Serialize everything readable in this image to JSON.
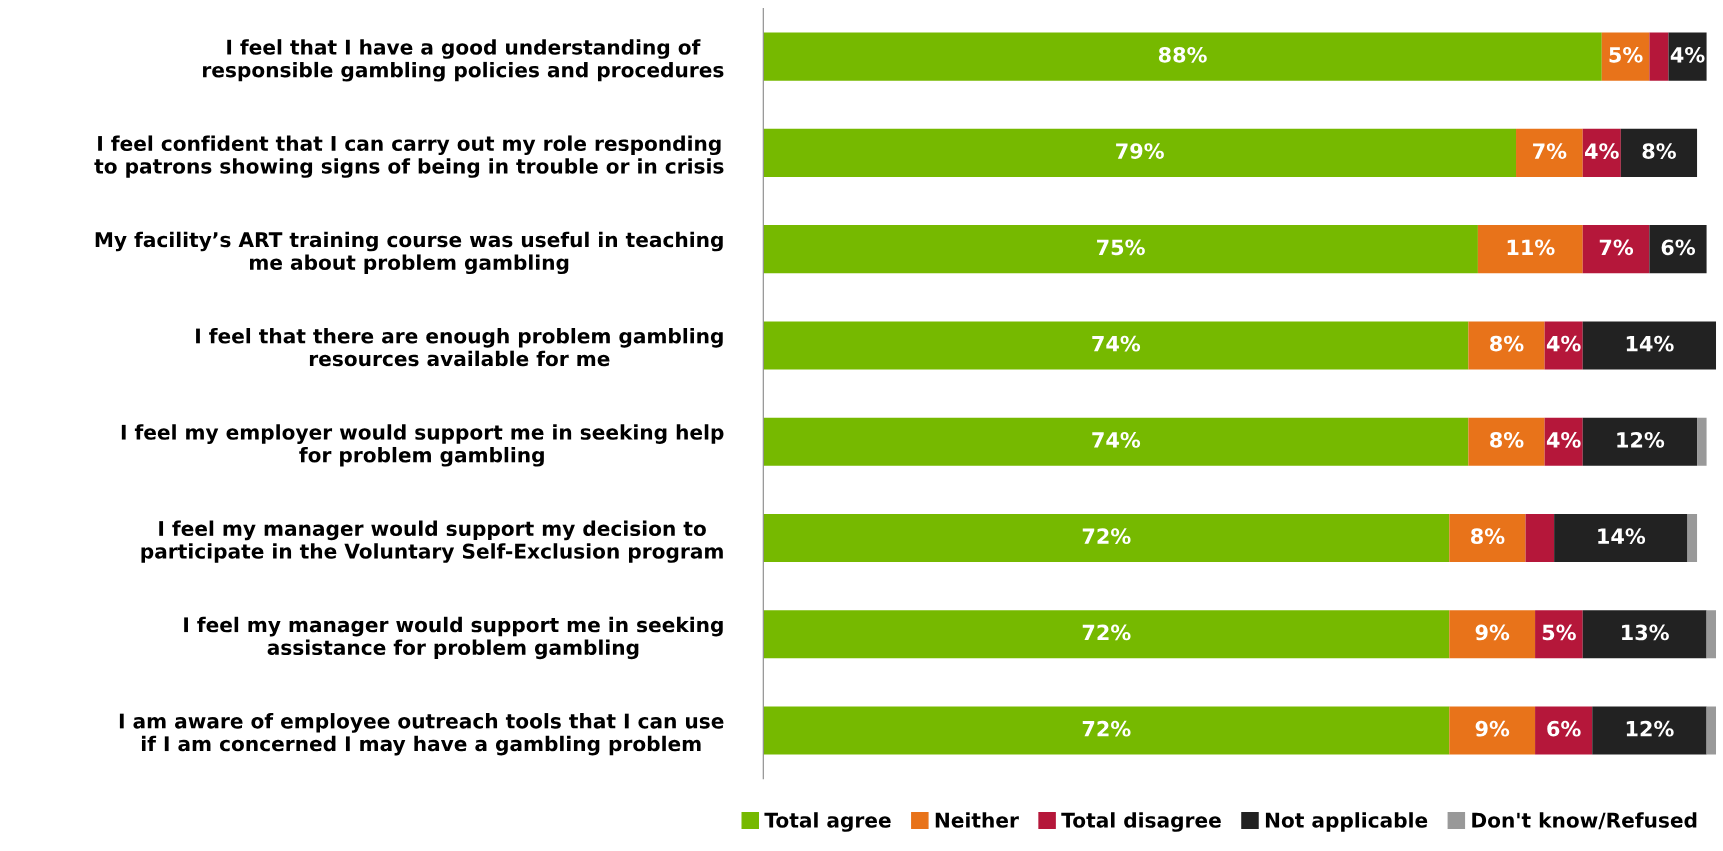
{
  "chart_data": {
    "type": "bar",
    "orientation": "horizontal",
    "stacked": true,
    "data_labels": false,
    "legend": "bottom",
    "xlim": [
      0,
      100
    ],
    "tick_labels": false,
    "categories": [
      "I feel that I have a good understanding of\nresponsible gambling policies and procedures",
      "I feel confident that I can carry out my role responding\nto patrons showing signs of being in trouble or in crisis",
      "My facility’s ART training course was useful in teaching\nme about problem gambling",
      "I feel that there are enough problem gambling\nresources available for me",
      "I feel my employer would support me in seeking help\nfor problem gambling",
      "I feel my manager would support my decision to\nparticipate in the Voluntary Self-Exclusion program",
      "I feel my manager would support me in seeking\nassistance for problem gambling",
      "I am aware of employee outreach tools that I can use\nif I am concerned I may have a gambling problem"
    ],
    "series": [
      {
        "name": "Total agree",
        "color": "#76b900",
        "values": [
          88,
          79,
          75,
          74,
          74,
          72,
          72,
          72
        ],
        "value_labels": [
          "88%",
          "79%",
          "75%",
          "74%",
          "74%",
          "72%",
          "72%",
          "72%"
        ]
      },
      {
        "name": "Neither",
        "color": "#e8731a",
        "values": [
          5,
          7,
          11,
          8,
          8,
          8,
          9,
          9
        ],
        "value_labels": [
          "5%",
          "7%",
          "11%",
          "8%",
          "8%",
          "8%",
          "9%",
          "9%"
        ]
      },
      {
        "name": "Total disagree",
        "color": "#b5173a",
        "values": [
          2,
          4,
          7,
          4,
          4,
          3,
          5,
          6
        ],
        "value_labels": [
          null,
          "4%",
          "7%",
          "4%",
          "4%",
          null,
          "5%",
          "6%"
        ]
      },
      {
        "name": "Not applicable",
        "color": "#222222",
        "values": [
          4,
          8,
          6,
          14,
          12,
          14,
          13,
          12
        ],
        "value_labels": [
          "4%",
          "8%",
          "6%",
          "14%",
          "12%",
          "14%",
          "13%",
          "12%"
        ]
      },
      {
        "name": "Don't know/Refused",
        "color": "#999999",
        "values": [
          null,
          null,
          null,
          null,
          1,
          1,
          1,
          1
        ],
        "value_labels": [
          null,
          null,
          null,
          null,
          null,
          null,
          null,
          null
        ]
      }
    ]
  }
}
